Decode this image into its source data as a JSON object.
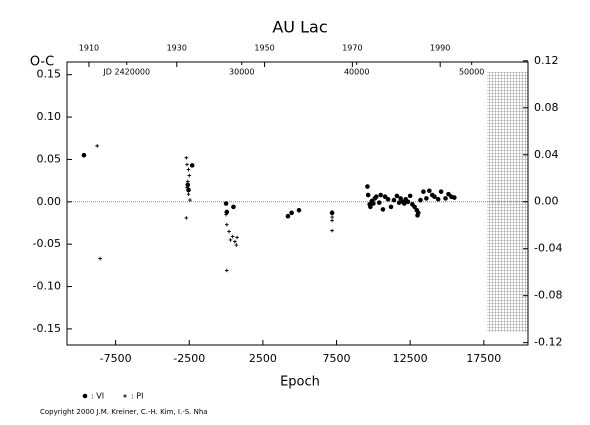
{
  "chart_data": {
    "type": "scatter",
    "title": "AU Lac",
    "ylabel": "O-C",
    "xlabel": "Epoch",
    "copyright": "Copyright 2000 J.M. Kreiner, C.-H. Kim, I.-S. Nha",
    "xlim": [
      -10800,
      20500
    ],
    "xticks": [
      -7500,
      -2500,
      2500,
      7500,
      12500,
      17500
    ],
    "ylim": [
      -0.169,
      0.165
    ],
    "yticks": [
      0.15,
      {
        "value": 0.1,
        "label": "0.10"
      },
      0.05,
      {
        "value": 0,
        "label": "0.00"
      },
      -0.05,
      {
        "value": -0.1,
        "label": "-0.10"
      },
      -0.15
    ],
    "y2lim": [
      -0.122,
      0.119
    ],
    "y2ticks": [
      0.12,
      0.08,
      0.04,
      {
        "value": 0,
        "label": "0.00"
      },
      -0.04,
      -0.08,
      -0.12
    ],
    "x2lim": [
      1905,
      2010
    ],
    "x2ticks": [
      1910,
      1930,
      1950,
      1970,
      1990
    ],
    "x3lim": [
      2414800,
      2454900
    ],
    "x3ticks": [
      {
        "value": 2420000,
        "label": "JD 2420000"
      },
      {
        "value": 2430000,
        "label": "30000"
      },
      {
        "value": 2440000,
        "label": "40000"
      },
      {
        "value": 2450000,
        "label": "50000"
      }
    ],
    "series": [
      {
        "name": ": VI",
        "marker": "dot",
        "color": "#000000",
        "x": [
          -9650,
          -2300,
          -2600,
          -2550,
          0,
          50,
          500,
          4200,
          4450,
          4950,
          7200,
          9600,
          9650,
          9750,
          9800,
          9900,
          10000,
          10100,
          10200,
          10400,
          10500,
          10650,
          10800,
          11000,
          11200,
          11400,
          11600,
          11750,
          11850,
          12000,
          12100,
          12200,
          12350,
          12500,
          12650,
          12800,
          12950,
          13000,
          13050,
          13200,
          13400,
          13600,
          13800,
          14000,
          14150,
          14400,
          14600,
          14900,
          15100,
          15300,
          15500
        ],
        "values": [
          0.055,
          0.043,
          0.02,
          0.014,
          -0.002,
          -0.012,
          -0.006,
          -0.017,
          -0.013,
          -0.01,
          -0.013,
          0.018,
          0.008,
          -0.003,
          -0.006,
          0.001,
          -0.002,
          0.004,
          0.006,
          -0.001,
          0.008,
          -0.009,
          0.006,
          0.003,
          -0.006,
          0.002,
          0.007,
          -0.001,
          0.004,
          0.0,
          -0.002,
          0.003,
          0.0,
          0.007,
          -0.003,
          -0.006,
          -0.01,
          -0.016,
          -0.013,
          0.002,
          0.012,
          0.004,
          0.013,
          0.008,
          0.006,
          0.003,
          0.012,
          0.004,
          0.009,
          0.006,
          0.005
        ]
      },
      {
        "name": ": PI",
        "marker": "plus",
        "color": "#000000",
        "x": [
          -8750,
          -8550,
          -2700,
          -2650,
          -2550,
          -2500,
          -2600,
          -2650,
          -2550,
          -2450,
          -2700,
          0,
          50,
          200,
          300,
          450,
          600,
          750,
          700,
          50,
          7200,
          7200,
          7200,
          7200
        ],
        "values": [
          0.066,
          -0.067,
          0.052,
          0.044,
          0.038,
          0.031,
          0.024,
          0.017,
          0.009,
          0.002,
          -0.019,
          -0.015,
          -0.027,
          -0.035,
          -0.045,
          -0.041,
          -0.047,
          -0.042,
          -0.051,
          -0.081,
          -0.012,
          -0.018,
          -0.022,
          -0.034
        ]
      }
    ]
  }
}
